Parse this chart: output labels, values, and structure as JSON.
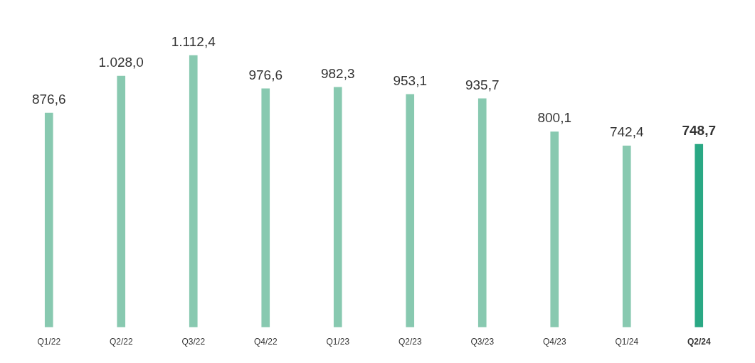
{
  "chart_data": {
    "type": "bar",
    "categories": [
      "Q1/22",
      "Q2/22",
      "Q3/22",
      "Q4/22",
      "Q1/23",
      "Q2/23",
      "Q3/23",
      "Q4/23",
      "Q1/24",
      "Q2/24"
    ],
    "values": [
      876.6,
      1028.0,
      1112.4,
      976.6,
      982.3,
      953.1,
      935.7,
      800.1,
      742.4,
      748.7
    ],
    "colors": [
      "#88c9b0",
      "#88c9b0",
      "#88c9b0",
      "#88c9b0",
      "#88c9b0",
      "#88c9b0",
      "#88c9b0",
      "#88c9b0",
      "#88c9b0",
      "#2aa884"
    ],
    "value_labels": [
      "876,6",
      "1.028,0",
      "1.112,4",
      "976,6",
      "982,3",
      "953,1",
      "935,7",
      "800,1",
      "742,4",
      "748,7"
    ],
    "tick_labels": "x"
  }
}
